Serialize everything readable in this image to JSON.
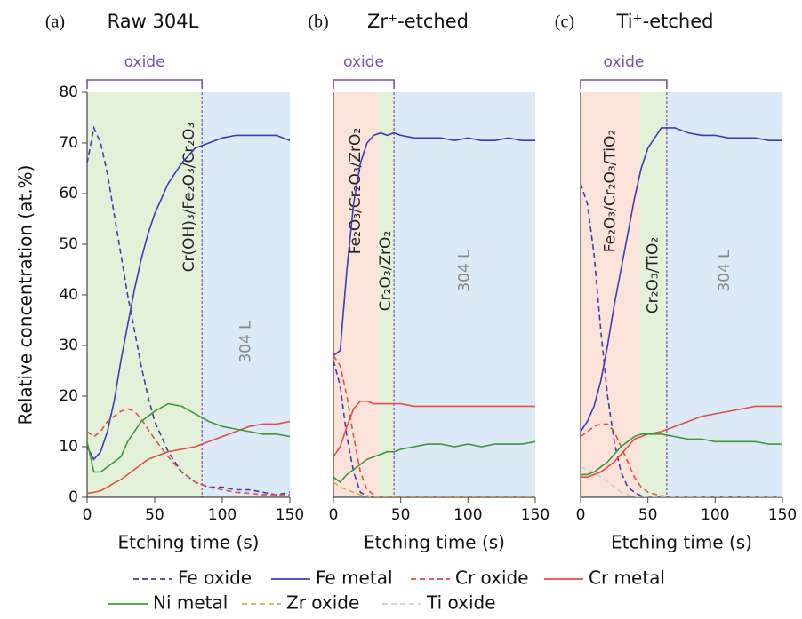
{
  "chart_data": [
    {
      "type": "line",
      "panel": "(a)",
      "title": "Raw 304L",
      "bracket_label": "oxide",
      "y_label": "Relative concentration (at.%)",
      "x_label": "Etching time (s)",
      "x": [
        0,
        5,
        10,
        15,
        20,
        25,
        30,
        35,
        40,
        45,
        50,
        60,
        70,
        80,
        90,
        100,
        110,
        120,
        130,
        140,
        150
      ],
      "xlim": [
        0,
        150
      ],
      "ylim": [
        0,
        80
      ],
      "xticks": [
        0,
        50,
        100,
        150
      ],
      "yticks": [
        0,
        10,
        20,
        30,
        40,
        50,
        60,
        70,
        80
      ],
      "regions": [
        {
          "label": "Cr(OH)₃/Fe₂O₃/Cr₂O₃",
          "end": 85,
          "color": "#e4f1d9",
          "label_color": "#222"
        },
        {
          "label": "304 L",
          "end": 150,
          "color": "#dce9f7",
          "label_color": "#888"
        }
      ],
      "series": [
        {
          "name": "Fe oxide",
          "color": "#3c3cb4",
          "style": "dashed",
          "values": [
            66,
            73,
            70,
            64,
            56,
            48,
            40,
            33,
            26,
            20,
            15,
            9,
            5,
            3,
            2,
            2,
            1.5,
            1.5,
            1,
            0.5,
            1
          ]
        },
        {
          "name": "Fe metal",
          "color": "#3c3cb4",
          "style": "solid",
          "values": [
            10,
            7.5,
            9,
            13,
            19,
            27,
            34,
            41,
            47,
            52,
            56,
            62,
            66,
            69,
            70,
            71,
            71.5,
            71.5,
            71.5,
            71.5,
            70.5
          ]
        },
        {
          "name": "Cr oxide",
          "color": "#de5048",
          "style": "dashed",
          "values": [
            13,
            12,
            13,
            15,
            16,
            17,
            17.5,
            17,
            15.5,
            13.5,
            11.5,
            8,
            5,
            3,
            2,
            1.5,
            1,
            0.8,
            0.5,
            0.5,
            0.5
          ]
        },
        {
          "name": "Cr metal",
          "color": "#de5048",
          "style": "solid",
          "values": [
            0.8,
            1,
            1.3,
            2,
            2.8,
            3.5,
            4.5,
            5.5,
            6.5,
            7.5,
            8,
            9,
            9.5,
            10,
            11,
            12,
            13,
            14,
            14.5,
            14.5,
            15
          ]
        },
        {
          "name": "Ni metal",
          "color": "#3a9a3a",
          "style": "solid",
          "values": [
            11,
            5,
            5,
            6,
            7,
            8,
            11,
            13,
            15,
            16,
            17,
            18.5,
            18,
            16.5,
            15,
            14,
            13.5,
            13,
            12.5,
            12.5,
            12
          ]
        }
      ]
    },
    {
      "type": "line",
      "panel": "(b)",
      "title": "Zr⁺-etched",
      "bracket_label": "oxide",
      "x_label": "Etching time (s)",
      "x": [
        0,
        5,
        10,
        15,
        20,
        25,
        30,
        35,
        40,
        45,
        50,
        60,
        70,
        80,
        90,
        100,
        110,
        120,
        130,
        140,
        150
      ],
      "xlim": [
        0,
        150
      ],
      "ylim": [
        0,
        80
      ],
      "xticks": [
        0,
        50,
        100,
        150
      ],
      "regions": [
        {
          "label": "Fe₂O₃/Cr₂O₃/ZrO₂",
          "end": 33,
          "color": "#fbe3d9",
          "label_color": "#222"
        },
        {
          "label": "Cr₂O₃/ZrO₂",
          "end": 45,
          "color": "#e4f1d9",
          "label_color": "#222"
        },
        {
          "label": "304 L",
          "end": 150,
          "color": "#dce9f7",
          "label_color": "#888"
        }
      ],
      "series": [
        {
          "name": "Fe oxide",
          "color": "#3c3cb4",
          "style": "dashed",
          "values": [
            27,
            22,
            12,
            5,
            1,
            0.3,
            0,
            0,
            0,
            0,
            0,
            0,
            0,
            0,
            0,
            0,
            0,
            0,
            0,
            0,
            0
          ]
        },
        {
          "name": "Fe metal",
          "color": "#3c3cb4",
          "style": "solid",
          "values": [
            28,
            29,
            45,
            58,
            66,
            70,
            71.5,
            72,
            71.5,
            72,
            71.5,
            71,
            71,
            71,
            70.5,
            71,
            70.5,
            70.5,
            71,
            70.5,
            70.5
          ]
        },
        {
          "name": "Cr oxide",
          "color": "#de5048",
          "style": "dashed",
          "values": [
            28,
            26,
            20,
            12,
            5,
            1.5,
            0.5,
            0,
            0,
            0,
            0,
            0,
            0,
            0,
            0,
            0,
            0,
            0,
            0,
            0,
            0
          ]
        },
        {
          "name": "Cr metal",
          "color": "#de5048",
          "style": "solid",
          "values": [
            8,
            10,
            14,
            17.5,
            19,
            19,
            18.5,
            18.5,
            18.5,
            18.5,
            18.5,
            18,
            18,
            18,
            18,
            18,
            18,
            18,
            18,
            18,
            18
          ]
        },
        {
          "name": "Ni metal",
          "color": "#3a9a3a",
          "style": "solid",
          "values": [
            4,
            3,
            4.5,
            5.5,
            6.5,
            7.5,
            8,
            8.5,
            9,
            9,
            9.5,
            10,
            10.5,
            10.5,
            10,
            10.5,
            10,
            10.5,
            10.5,
            10.5,
            11
          ]
        },
        {
          "name": "Zr oxide",
          "color": "#c8b840",
          "style": "dashed",
          "values": [
            3,
            2,
            1.5,
            1,
            0.5,
            0.2,
            0,
            0,
            0,
            0,
            0,
            0,
            0,
            0,
            0,
            0,
            0,
            0,
            0,
            0,
            0
          ]
        }
      ]
    },
    {
      "type": "line",
      "panel": "(c)",
      "title": "Ti⁺-etched",
      "bracket_label": "oxide",
      "x_label": "Etching time (s)",
      "x": [
        0,
        5,
        10,
        15,
        20,
        25,
        30,
        35,
        40,
        45,
        50,
        60,
        70,
        80,
        90,
        100,
        110,
        120,
        130,
        140,
        150
      ],
      "xlim": [
        0,
        150
      ],
      "ylim": [
        0,
        80
      ],
      "xticks": [
        0,
        50,
        100,
        150
      ],
      "regions": [
        {
          "label": "Fe₂O₃/Cr₂O₃/TiO₂",
          "end": 44,
          "color": "#fbe3d9",
          "label_color": "#222"
        },
        {
          "label": "Cr₂O₃/TiO₂",
          "end": 64,
          "color": "#e4f1d9",
          "label_color": "#222"
        },
        {
          "label": "304 L",
          "end": 150,
          "color": "#dce9f7",
          "label_color": "#888"
        }
      ],
      "series": [
        {
          "name": "Fe oxide",
          "color": "#3c3cb4",
          "style": "dashed",
          "values": [
            62,
            58,
            48,
            33,
            20,
            11,
            5,
            2,
            1,
            0.3,
            0,
            0,
            0,
            0,
            0,
            0,
            0,
            0,
            0,
            0,
            0
          ]
        },
        {
          "name": "Fe metal",
          "color": "#3c3cb4",
          "style": "solid",
          "values": [
            13,
            15,
            18,
            23,
            30,
            38,
            45,
            52,
            59,
            65,
            69,
            73,
            73,
            72,
            71.5,
            71.5,
            71,
            71,
            71,
            70.5,
            70.5
          ]
        },
        {
          "name": "Cr oxide",
          "color": "#de5048",
          "style": "dashed",
          "values": [
            12,
            13,
            14,
            14.5,
            14.5,
            13,
            10,
            7,
            4,
            2,
            1,
            0.3,
            0,
            0,
            0,
            0,
            0,
            0,
            0,
            0,
            0
          ]
        },
        {
          "name": "Cr metal",
          "color": "#de5048",
          "style": "solid",
          "values": [
            4,
            4,
            4.5,
            5,
            6,
            7,
            8.5,
            10,
            11.5,
            12,
            12.5,
            13,
            14,
            15,
            16,
            16.5,
            17,
            17.5,
            18,
            18,
            18
          ]
        },
        {
          "name": "Ni metal",
          "color": "#3a9a3a",
          "style": "solid",
          "values": [
            4.5,
            4.5,
            5,
            6,
            7,
            8.5,
            10,
            11,
            12,
            12.5,
            12.5,
            12.5,
            12,
            11.5,
            11.5,
            11,
            11,
            11,
            11,
            10.5,
            10.5
          ]
        },
        {
          "name": "Ti oxide",
          "color": "#cccccc",
          "style": "dashed",
          "values": [
            6,
            5.5,
            5,
            4,
            3,
            2,
            1,
            0.5,
            0.2,
            0,
            0,
            0,
            0,
            0,
            0,
            0,
            0,
            0,
            0,
            0,
            0
          ]
        }
      ]
    }
  ]
}
